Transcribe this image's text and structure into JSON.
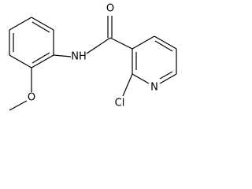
{
  "atoms": {
    "carbonyl_oxygen": "O",
    "amide_nitrogen": "NH",
    "pyridine_nitrogen": "N",
    "chlorine": "Cl",
    "methoxy_oxygen": "O"
  }
}
